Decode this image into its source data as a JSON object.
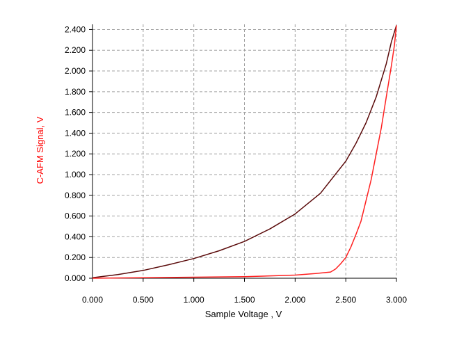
{
  "chart_data": {
    "type": "line",
    "title": "",
    "xlabel": "Sample Voltage , V",
    "ylabel": "C-AFM Signal, V",
    "xlim": [
      0,
      3.0
    ],
    "ylim": [
      0,
      2.45
    ],
    "x_ticks": [
      "0.000",
      "0.500",
      "1.000",
      "1.500",
      "2.000",
      "2.500",
      "3.000"
    ],
    "y_ticks": [
      "0.000",
      "0.200",
      "0.400",
      "0.600",
      "0.800",
      "1.000",
      "1.200",
      "1.400",
      "1.600",
      "1.800",
      "2.000",
      "2.200",
      "2.400"
    ],
    "grid": true,
    "colors": {
      "xlabel": "#000000",
      "ylabel": "#ff0000",
      "grid": "#a0a0a0"
    },
    "series": [
      {
        "color": "#5a0a0a",
        "x": [
          0.0,
          0.25,
          0.5,
          0.75,
          1.0,
          1.25,
          1.5,
          1.75,
          2.0,
          2.25,
          2.5,
          2.6,
          2.7,
          2.8,
          2.9,
          2.95,
          3.0
        ],
        "y": [
          0.005,
          0.035,
          0.075,
          0.13,
          0.19,
          0.265,
          0.355,
          0.475,
          0.62,
          0.82,
          1.13,
          1.3,
          1.5,
          1.75,
          2.07,
          2.28,
          2.44
        ]
      },
      {
        "color": "#ff2020",
        "x": [
          0.0,
          0.5,
          1.0,
          1.5,
          2.0,
          2.2,
          2.35,
          2.4,
          2.45,
          2.5,
          2.55,
          2.6,
          2.65,
          2.7,
          2.75,
          2.8,
          2.85,
          2.9,
          2.95,
          2.98,
          3.0
        ],
        "y": [
          0.0,
          0.005,
          0.01,
          0.015,
          0.03,
          0.045,
          0.06,
          0.09,
          0.14,
          0.2,
          0.3,
          0.42,
          0.55,
          0.75,
          0.95,
          1.2,
          1.45,
          1.75,
          2.05,
          2.25,
          2.44
        ]
      }
    ]
  }
}
